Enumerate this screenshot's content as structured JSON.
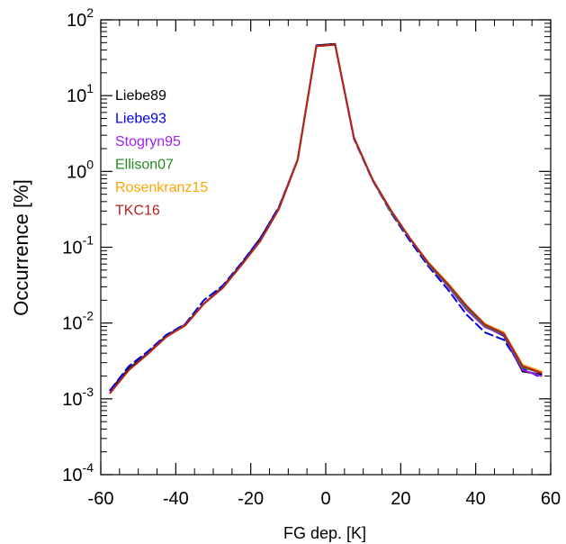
{
  "chart_data": {
    "type": "line",
    "xlabel": "FG dep. [K]",
    "ylabel": "Occurrence [%]",
    "xlim": [
      -60,
      60
    ],
    "ylim": [
      0.0001,
      100
    ],
    "yscale": "log",
    "x_ticks": [
      "-60",
      "-40",
      "-20",
      "0",
      "20",
      "40",
      "60"
    ],
    "y_ticks": [
      {
        "base": "10",
        "exp": "-4"
      },
      {
        "base": "10",
        "exp": "-3"
      },
      {
        "base": "10",
        "exp": "-2"
      },
      {
        "base": "10",
        "exp": "-1"
      },
      {
        "base": "10",
        "exp": "0"
      },
      {
        "base": "10",
        "exp": "1"
      },
      {
        "base": "10",
        "exp": "2"
      }
    ],
    "legend_position": "top-left",
    "grid": false,
    "x": [
      -57.5,
      -52.5,
      -47.5,
      -42.5,
      -37.5,
      -32.5,
      -27.5,
      -22.5,
      -17.5,
      -12.5,
      -7.5,
      -2.5,
      2.5,
      7.5,
      12.5,
      17.5,
      22.5,
      27.5,
      32.5,
      37.5,
      42.5,
      47.5,
      52.5,
      57.5
    ],
    "series": [
      {
        "name": "Liebe89",
        "color": "#000000",
        "dash": "solid",
        "values": [
          0.0013,
          0.0025,
          0.004,
          0.0068,
          0.0095,
          0.018,
          0.03,
          0.06,
          0.13,
          0.33,
          1.45,
          46,
          48,
          2.8,
          0.78,
          0.3,
          0.13,
          0.06,
          0.032,
          0.016,
          0.009,
          0.0068,
          0.0023,
          0.0021
        ]
      },
      {
        "name": "Liebe93",
        "color": "#0000e0",
        "dash": "dashed",
        "values": [
          0.0013,
          0.0027,
          0.0042,
          0.007,
          0.0097,
          0.02,
          0.031,
          0.062,
          0.13,
          0.34,
          1.4,
          46,
          47,
          2.7,
          0.76,
          0.28,
          0.12,
          0.055,
          0.028,
          0.013,
          0.0075,
          0.006,
          0.0025,
          0.0019
        ]
      },
      {
        "name": "Stogryn95",
        "color": "#a020f0",
        "dash": "solid",
        "values": [
          0.0012,
          0.0024,
          0.0039,
          0.0066,
          0.0093,
          0.018,
          0.029,
          0.058,
          0.12,
          0.32,
          1.42,
          45,
          47,
          2.8,
          0.77,
          0.29,
          0.13,
          0.058,
          0.031,
          0.015,
          0.0088,
          0.007,
          0.0024,
          0.002
        ]
      },
      {
        "name": "Ellison07",
        "color": "#228b22",
        "dash": "solid",
        "values": [
          0.0012,
          0.0024,
          0.0039,
          0.0066,
          0.0093,
          0.018,
          0.029,
          0.058,
          0.12,
          0.32,
          1.42,
          45,
          47,
          2.8,
          0.77,
          0.29,
          0.13,
          0.059,
          0.032,
          0.016,
          0.0092,
          0.0072,
          0.0026,
          0.0022
        ]
      },
      {
        "name": "Rosenkranz15",
        "color": "#ffa500",
        "dash": "solid",
        "values": [
          0.0012,
          0.0024,
          0.0039,
          0.0066,
          0.0093,
          0.018,
          0.029,
          0.058,
          0.12,
          0.32,
          1.42,
          45,
          47,
          2.8,
          0.78,
          0.3,
          0.13,
          0.062,
          0.034,
          0.017,
          0.0097,
          0.0075,
          0.0028,
          0.0023
        ]
      },
      {
        "name": "TKC16",
        "color": "#b22222",
        "dash": "solid",
        "values": [
          0.0012,
          0.0024,
          0.0039,
          0.0066,
          0.0093,
          0.018,
          0.029,
          0.058,
          0.12,
          0.32,
          1.42,
          45,
          47,
          2.8,
          0.78,
          0.3,
          0.13,
          0.061,
          0.033,
          0.017,
          0.0095,
          0.0073,
          0.0027,
          0.0022
        ]
      }
    ]
  }
}
